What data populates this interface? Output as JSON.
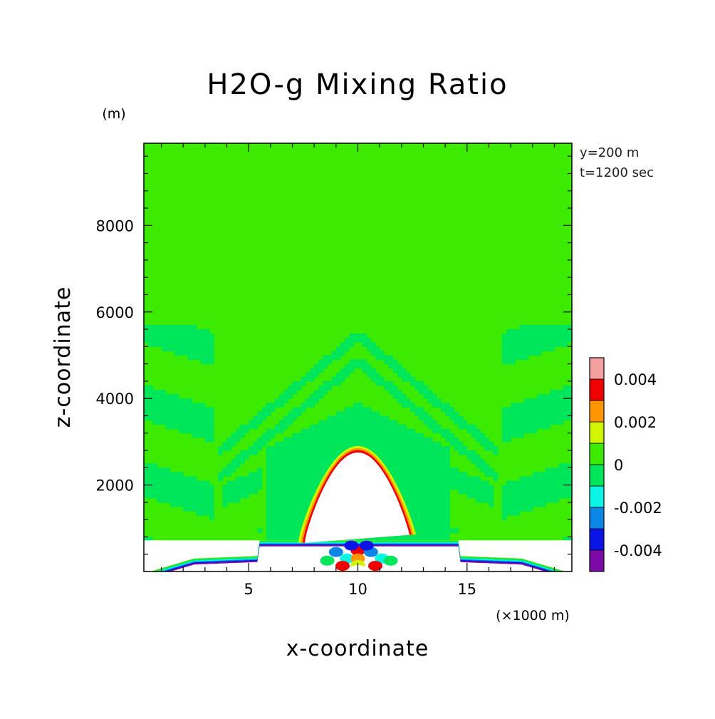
{
  "chart_data": {
    "type": "heatmap",
    "title": "H2O-g Mixing Ratio",
    "xlabel": "x-coordinate",
    "ylabel": "z-coordinate",
    "x_unit": "(×1000 m)",
    "y_unit": "(m)",
    "info": [
      "y=200 m",
      "t=1200 sec"
    ],
    "xlim": [
      0.2,
      19.8
    ],
    "ylim": [
      0,
      9900
    ],
    "x_ticks": [
      5,
      10,
      15
    ],
    "x_tick_labels": [
      "5",
      "10",
      "15"
    ],
    "y_ticks": [
      2000,
      4000,
      6000,
      8000
    ],
    "y_tick_labels": [
      "2000",
      "4000",
      "6000",
      "8000"
    ],
    "grid": false,
    "legend": "colorbar-right",
    "colorbar": {
      "levels": [
        -0.005,
        -0.004,
        -0.003,
        -0.002,
        -0.001,
        0,
        0.001,
        0.002,
        0.003,
        0.004,
        0.005
      ],
      "colors": [
        "#7b0aa8",
        "#0a14e6",
        "#0a87e6",
        "#0af5e6",
        "#00e65a",
        "#3ceb00",
        "#d2f500",
        "#ff9600",
        "#f00000",
        "#f5a0a0"
      ],
      "tick_values": [
        0.004,
        0.002,
        0,
        -0.002,
        -0.004
      ],
      "tick_labels": [
        "0.004",
        "0.002",
        "0",
        "-0.002",
        "-0.004"
      ]
    },
    "field": {
      "background_level": 0.0005,
      "mountain_peak": [
        10,
        2750
      ],
      "mountain_half_width": 2.3,
      "perturbed_layer_top": 720
    }
  }
}
